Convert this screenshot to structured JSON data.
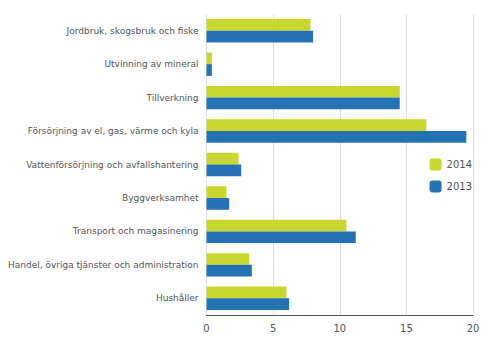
{
  "chart_data": {
    "type": "bar",
    "orientation": "horizontal",
    "categories": [
      "Hushåller",
      "Handel, övriga tjänster och administration",
      "Transport och magasinering",
      "Byggverksamhet",
      "Vattenförsörjning och avfallshantering",
      "Försörjning av el, gas, värme och kyla",
      "Tillverkning",
      "Utvinning av mineral",
      "Jordbruk, skogsbruk och fiske"
    ],
    "series": [
      {
        "name": "2014",
        "color": "#c8d630",
        "values": [
          6.0,
          3.2,
          10.5,
          1.5,
          2.4,
          16.5,
          14.5,
          0.4,
          7.8
        ]
      },
      {
        "name": "2013",
        "color": "#2472b4",
        "values": [
          6.2,
          3.4,
          11.2,
          1.7,
          2.6,
          19.5,
          14.5,
          0.4,
          8.0
        ]
      }
    ],
    "xlim": [
      0,
      20
    ],
    "xticks": [
      0,
      5,
      10,
      15,
      20
    ],
    "grid": true,
    "legend": "right"
  }
}
